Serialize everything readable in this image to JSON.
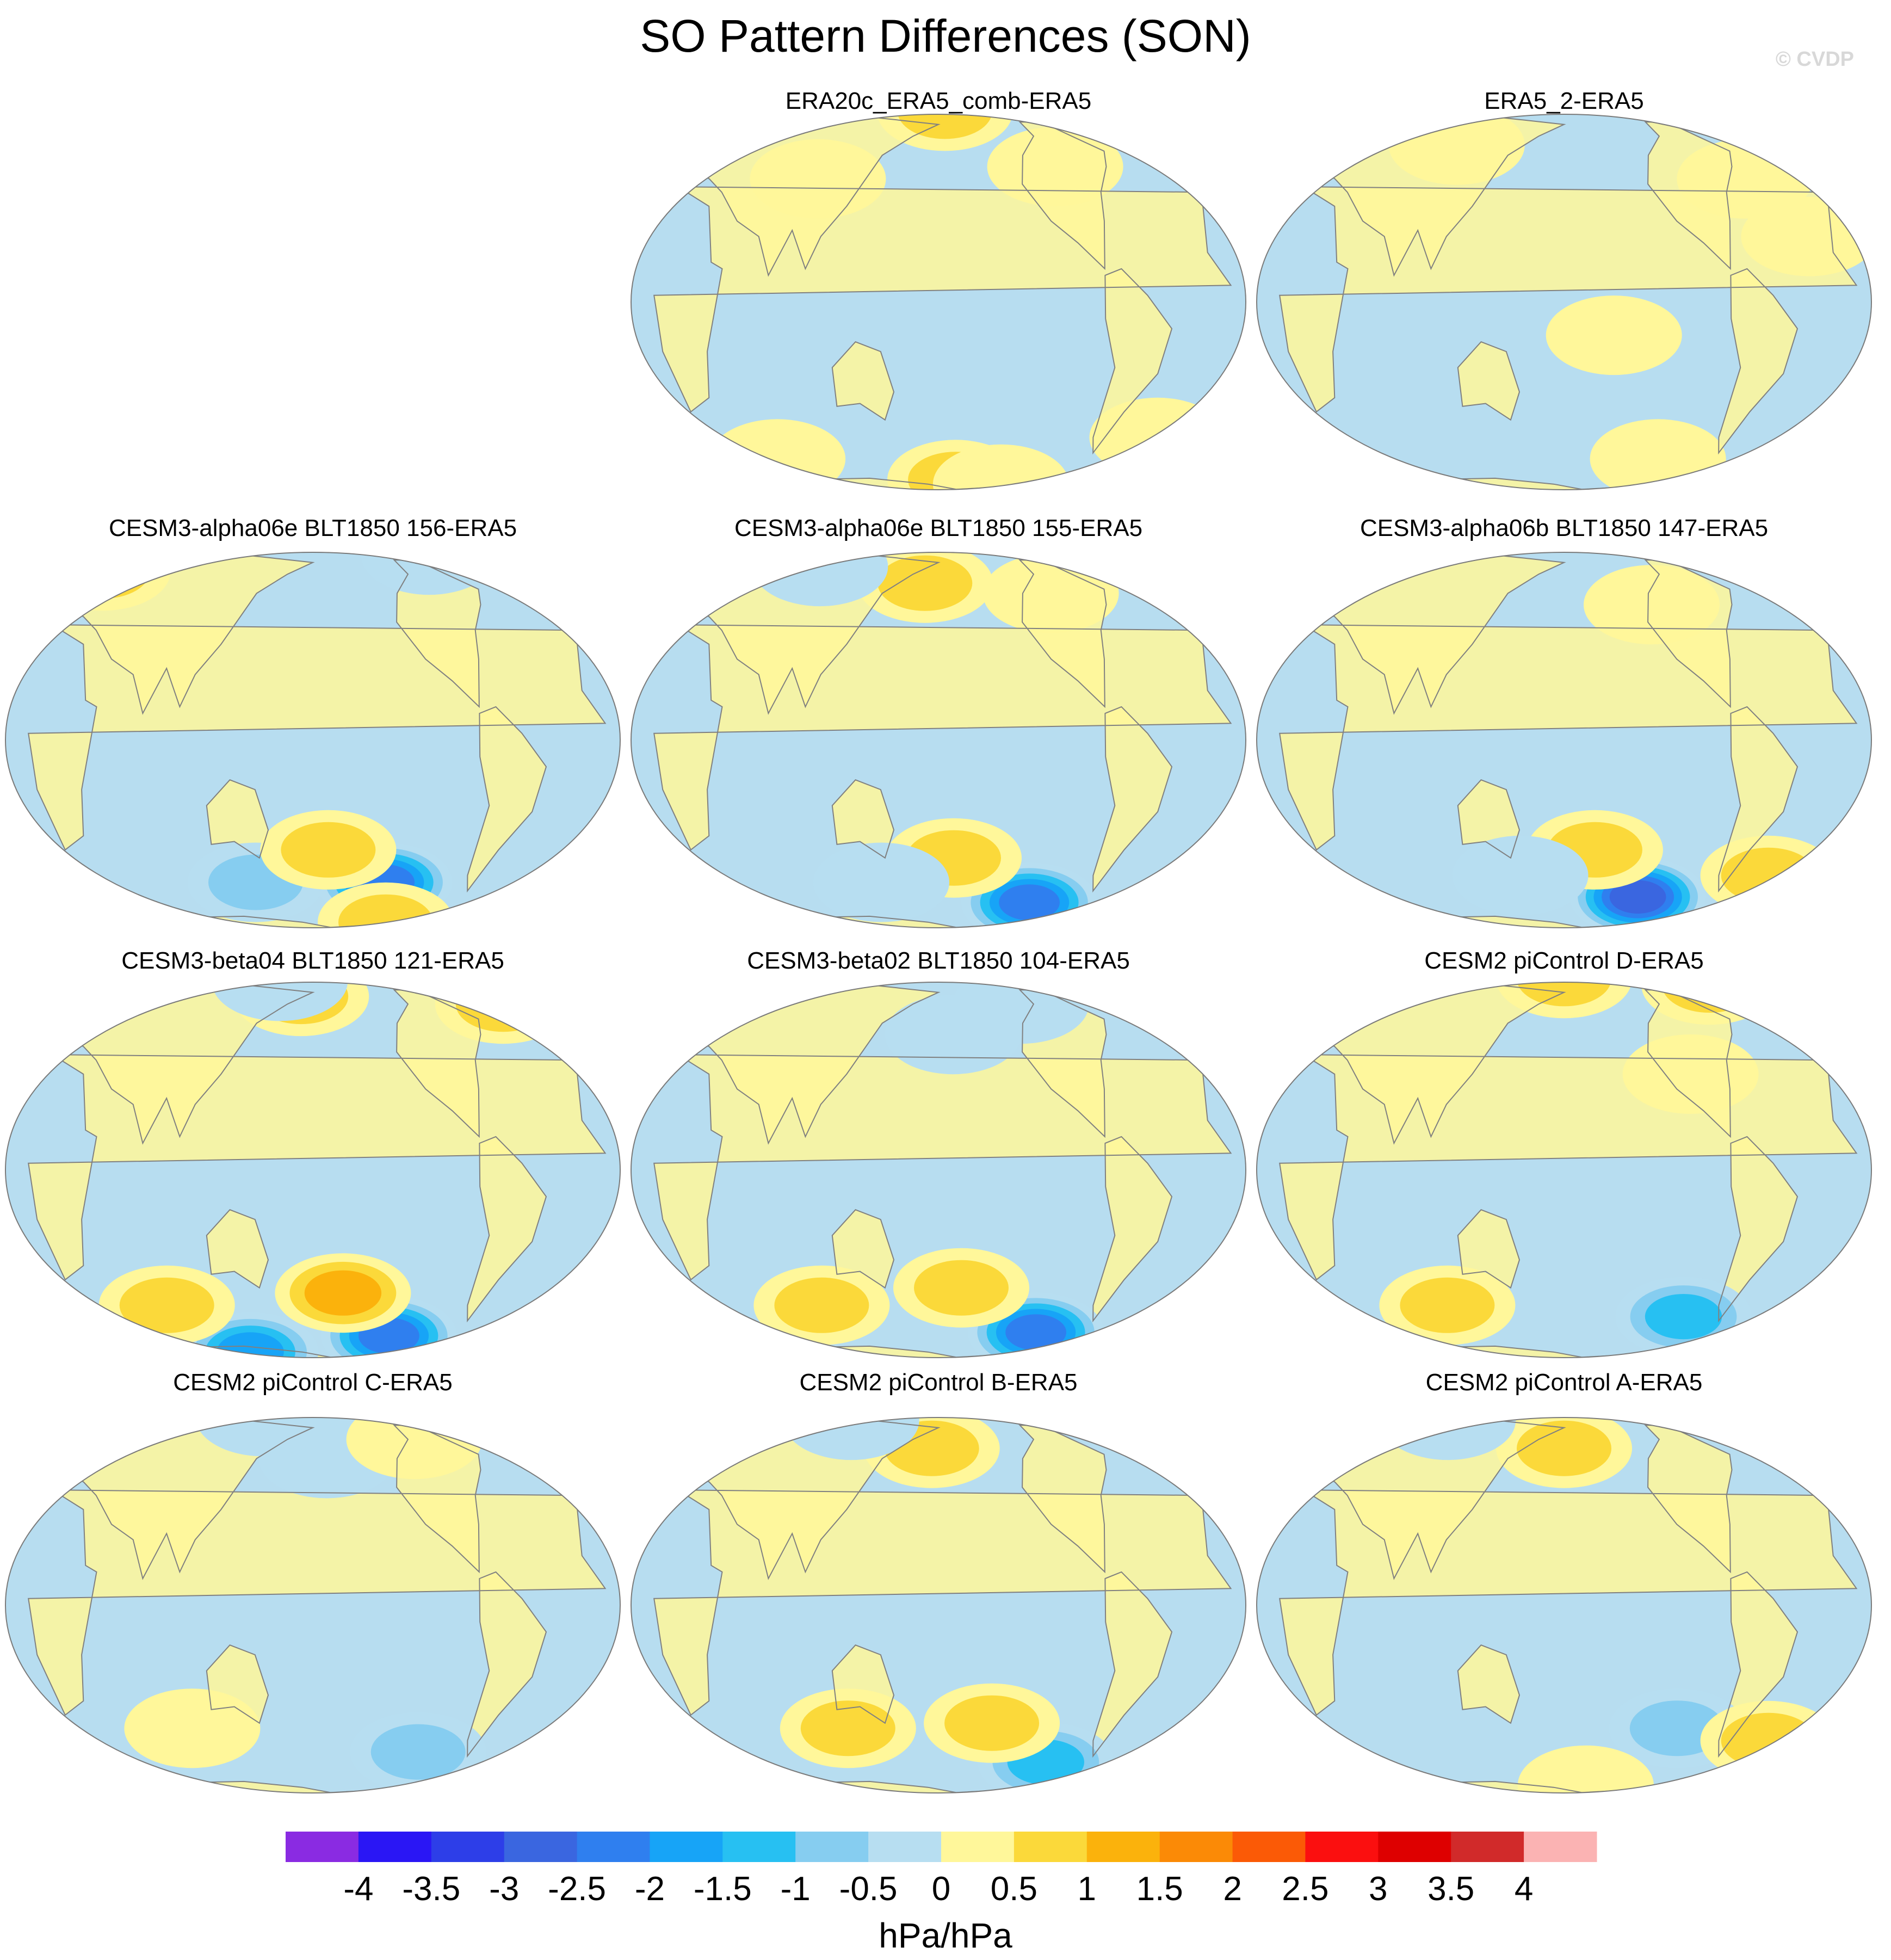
{
  "figure": {
    "title": "SO Pattern Differences (SON)",
    "credit": "© CVDP",
    "units": "hPa/hPa"
  },
  "colors": {
    "ocean_neg": "#b7ddf0",
    "ocean_pos": "#fff79a",
    "coast": "#808080",
    "border": "#7a7a7a"
  },
  "chart_data": {
    "type": "heatmap",
    "projection": "Robinson (Pacific-centered global map)",
    "variable": "SO pattern difference",
    "season": "SON",
    "units": "hPa/hPa",
    "colorbar": {
      "levels": [
        -4,
        -3.5,
        -3,
        -2.5,
        -2,
        -1.5,
        -1,
        -0.5,
        0,
        0.5,
        1,
        1.5,
        2,
        2.5,
        3,
        3.5,
        4
      ],
      "tick_labels": [
        "-4",
        "-3.5",
        "-3",
        "-2.5",
        "-2",
        "-1.5",
        "-1",
        "-0.5",
        "0",
        "0.5",
        "1",
        "1.5",
        "2",
        "2.5",
        "3",
        "3.5",
        "4"
      ],
      "colors": [
        "#8a2be2",
        "#2a16f5",
        "#2d3ee8",
        "#3a66e0",
        "#2f7fef",
        "#17a4f7",
        "#27c0f2",
        "#86cdf0",
        "#b7def1",
        "#fff79a",
        "#fbd93a",
        "#fbb20c",
        "#fb8a06",
        "#fb5a06",
        "#fb0f0f",
        "#de0000",
        "#d12a2a",
        "#fbb3b3"
      ]
    },
    "panels": [
      {
        "title": "ERA20c_ERA5_comb-ERA5",
        "row": 0,
        "col": 1,
        "features": [
          {
            "lon": 190,
            "lat": 85,
            "value": 1.0
          },
          {
            "lon": 195,
            "lat": -68,
            "value": 1.0
          },
          {
            "lon": 240,
            "lat": -72,
            "value": 0.6
          },
          {
            "lon": 60,
            "lat": -55,
            "value": 0.3
          },
          {
            "lon": 330,
            "lat": -45,
            "value": 0.3
          },
          {
            "lon": 100,
            "lat": 40,
            "value": 0.3
          },
          {
            "lon": 260,
            "lat": 45,
            "value": 0.3
          }
        ]
      },
      {
        "title": "ERA5_2-ERA5",
        "row": 0,
        "col": 2,
        "features": [
          {
            "lon": 100,
            "lat": 55,
            "value": 0.3
          },
          {
            "lon": 300,
            "lat": 40,
            "value": 0.3
          },
          {
            "lon": 210,
            "lat": -10,
            "value": 0.3
          },
          {
            "lon": 250,
            "lat": -55,
            "value": 0.3
          },
          {
            "lon": 330,
            "lat": 20,
            "value": 0.3
          }
        ]
      },
      {
        "title": "CESM3-alpha06e BLT1850 156-ERA5",
        "row": 1,
        "col": 0,
        "features": [
          {
            "lon": 230,
            "lat": -48,
            "value": -2.5
          },
          {
            "lon": 140,
            "lat": -48,
            "value": -1.0
          },
          {
            "lon": 190,
            "lat": -35,
            "value": 1.0
          },
          {
            "lon": 250,
            "lat": -72,
            "value": 1.0
          },
          {
            "lon": 10,
            "lat": 62,
            "value": 1.0
          },
          {
            "lon": 300,
            "lat": 75,
            "value": -0.6
          }
        ]
      },
      {
        "title": "CESM3-alpha06e BLT1850 155-ERA5",
        "row": 1,
        "col": 1,
        "features": [
          {
            "lon": 250,
            "lat": -58,
            "value": -2.5
          },
          {
            "lon": 190,
            "lat": -38,
            "value": 1.0
          },
          {
            "lon": 140,
            "lat": -48,
            "value": -0.6
          },
          {
            "lon": 170,
            "lat": 55,
            "value": 1.0
          },
          {
            "lon": 80,
            "lat": 65,
            "value": -0.6
          },
          {
            "lon": 260,
            "lat": 50,
            "value": 0.3
          }
        ]
      },
      {
        "title": "CESM3-alpha06b BLT1850 147-ERA5",
        "row": 1,
        "col": 2,
        "features": [
          {
            "lon": 235,
            "lat": -55,
            "value": -3.0
          },
          {
            "lon": 200,
            "lat": -35,
            "value": 1.0
          },
          {
            "lon": 320,
            "lat": -45,
            "value": 1.0
          },
          {
            "lon": 150,
            "lat": -45,
            "value": -0.6
          },
          {
            "lon": 240,
            "lat": 45,
            "value": 0.3
          }
        ]
      },
      {
        "title": "CESM3-beta04 BLT1850 121-ERA5",
        "row": 2,
        "col": 0,
        "features": [
          {
            "lon": 240,
            "lat": -60,
            "value": -2.5
          },
          {
            "lon": 120,
            "lat": -72,
            "value": -2.0
          },
          {
            "lon": 200,
            "lat": -40,
            "value": 1.5
          },
          {
            "lon": 80,
            "lat": -45,
            "value": 1.0
          },
          {
            "lon": 330,
            "lat": 60,
            "value": 1.0
          },
          {
            "lon": 170,
            "lat": 65,
            "value": 1.0
          },
          {
            "lon": 140,
            "lat": 80,
            "value": -0.6
          }
        ]
      },
      {
        "title": "CESM3-beta02 BLT1850 104-ERA5",
        "row": 2,
        "col": 1,
        "features": [
          {
            "lon": 255,
            "lat": -58,
            "value": -2.5
          },
          {
            "lon": 195,
            "lat": -38,
            "value": 1.0
          },
          {
            "lon": 100,
            "lat": -45,
            "value": 1.0
          },
          {
            "lon": 190,
            "lat": 45,
            "value": -0.6
          },
          {
            "lon": 245,
            "lat": 60,
            "value": -0.6
          }
        ]
      },
      {
        "title": "CESM2 piControl D-ERA5",
        "row": 2,
        "col": 2,
        "features": [
          {
            "lon": 265,
            "lat": -50,
            "value": -1.5
          },
          {
            "lon": 100,
            "lat": -45,
            "value": 1.0
          },
          {
            "lon": 180,
            "lat": 88,
            "value": 1.0
          },
          {
            "lon": 330,
            "lat": 75,
            "value": 1.0
          },
          {
            "lon": 260,
            "lat": 30,
            "value": 0.3
          }
        ]
      },
      {
        "title": "CESM2 piControl C-ERA5",
        "row": 3,
        "col": 0,
        "features": [
          {
            "lon": 255,
            "lat": -50,
            "value": -1.0
          },
          {
            "lon": 190,
            "lat": 50,
            "value": -0.6
          },
          {
            "lon": 100,
            "lat": -40,
            "value": 0.6
          },
          {
            "lon": 260,
            "lat": 60,
            "value": 0.6
          },
          {
            "lon": 120,
            "lat": 80,
            "value": -0.6
          }
        ]
      },
      {
        "title": "CESM2 piControl B-ERA5",
        "row": 3,
        "col": 1,
        "features": [
          {
            "lon": 260,
            "lat": -55,
            "value": -1.5
          },
          {
            "lon": 120,
            "lat": -40,
            "value": 1.0
          },
          {
            "lon": 215,
            "lat": -38,
            "value": 1.0
          },
          {
            "lon": 175,
            "lat": 55,
            "value": 1.0
          },
          {
            "lon": 90,
            "lat": 75,
            "value": -0.6
          }
        ]
      },
      {
        "title": "CESM2 piControl A-ERA5",
        "row": 3,
        "col": 2,
        "features": [
          {
            "lon": 255,
            "lat": -40,
            "value": -1.0
          },
          {
            "lon": 320,
            "lat": -45,
            "value": 1.0
          },
          {
            "lon": 180,
            "lat": 55,
            "value": 1.0
          },
          {
            "lon": 60,
            "lat": 75,
            "value": -0.6
          },
          {
            "lon": 200,
            "lat": -70,
            "value": 0.6
          }
        ]
      }
    ]
  }
}
